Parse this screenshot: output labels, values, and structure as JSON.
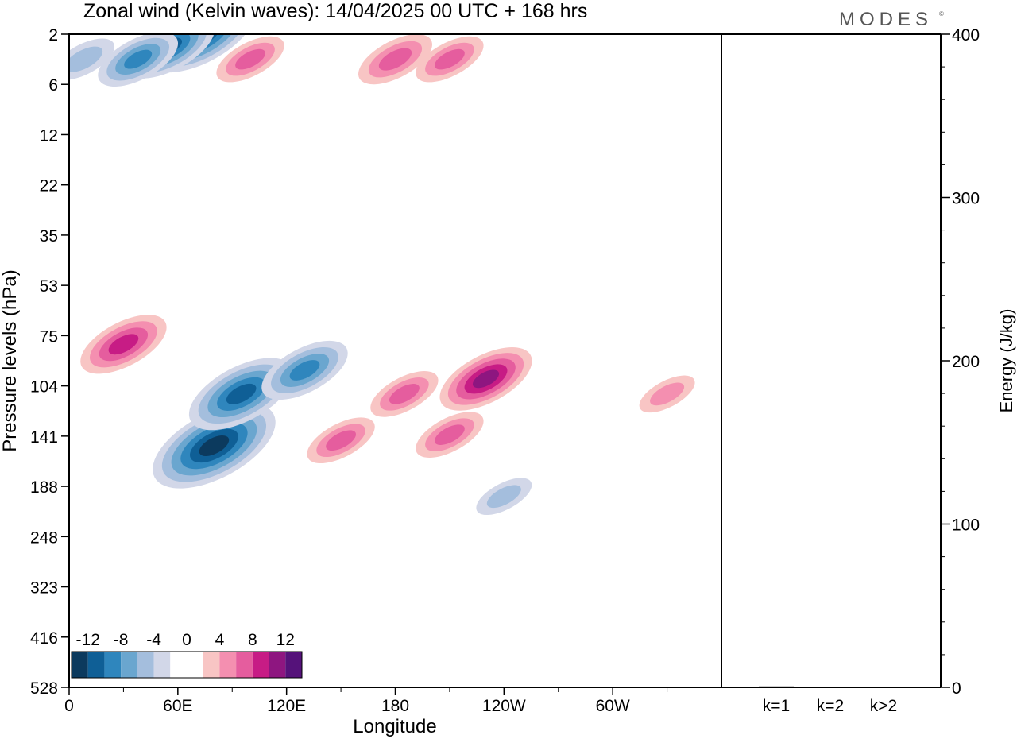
{
  "title": "Zonal wind (Kelvin waves):  14/04/2025  00 UTC  + 168 hrs",
  "brand": "MODES",
  "brand_mark": "©",
  "colors": {
    "neg": [
      "#0c3a5e",
      "#0f5f96",
      "#2f86bd",
      "#6aa6cf",
      "#a4bedd",
      "#d2d7e8"
    ],
    "zero": "#ffffff",
    "pos": [
      "#f8c5c4",
      "#f48fb0",
      "#e55d9e",
      "#c71c85",
      "#8e1680",
      "#55127a"
    ]
  },
  "chart_data": [
    {
      "type": "heatmap",
      "title": "Zonal wind (Kelvin waves):  14/04/2025  00 UTC  + 168 hrs",
      "xlabel": "Longitude",
      "ylabel": "Pressure levels (hPa)",
      "x_ticks": [
        "0",
        "60E",
        "120E",
        "180",
        "120W",
        "60W"
      ],
      "y_ticks": [
        "2",
        "6",
        "12",
        "22",
        "35",
        "53",
        "75",
        "104",
        "141",
        "188",
        "248",
        "323",
        "416",
        "528"
      ],
      "colorbar_ticks": [
        "-12",
        "-8",
        "-4",
        "0",
        "4",
        "8",
        "12"
      ],
      "features": [
        {
          "lon": 72,
          "p": 2,
          "value": -12
        },
        {
          "lon": 55,
          "p": 3,
          "value": -9
        },
        {
          "lon": 38,
          "p": 4,
          "value": -7
        },
        {
          "lon": 8,
          "p": 4,
          "value": -4
        },
        {
          "lon": 100,
          "p": 4,
          "value": 5
        },
        {
          "lon": 180,
          "p": 4,
          "value": 6
        },
        {
          "lon": 210,
          "p": 4,
          "value": 5
        },
        {
          "lon": 30,
          "p": 80,
          "value": 8
        },
        {
          "lon": 80,
          "p": 150,
          "value": -14
        },
        {
          "lon": 95,
          "p": 110,
          "value": -11
        },
        {
          "lon": 130,
          "p": 95,
          "value": -8
        },
        {
          "lon": 150,
          "p": 145,
          "value": 5
        },
        {
          "lon": 185,
          "p": 110,
          "value": 5
        },
        {
          "lon": 230,
          "p": 100,
          "value": 9
        },
        {
          "lon": 210,
          "p": 140,
          "value": 5
        },
        {
          "lon": 240,
          "p": 200,
          "value": -3
        },
        {
          "lon": 330,
          "p": 110,
          "value": 3
        }
      ]
    },
    {
      "type": "bar",
      "ylabel": "Energy (J/kg)",
      "categories": [
        "k=1",
        "k=2",
        "k>2"
      ],
      "values": [
        0.6,
        0.4,
        0.1
      ],
      "ylim": [
        0,
        400
      ],
      "y_ticks": [
        "0",
        "100",
        "200",
        "300",
        "400"
      ]
    }
  ]
}
